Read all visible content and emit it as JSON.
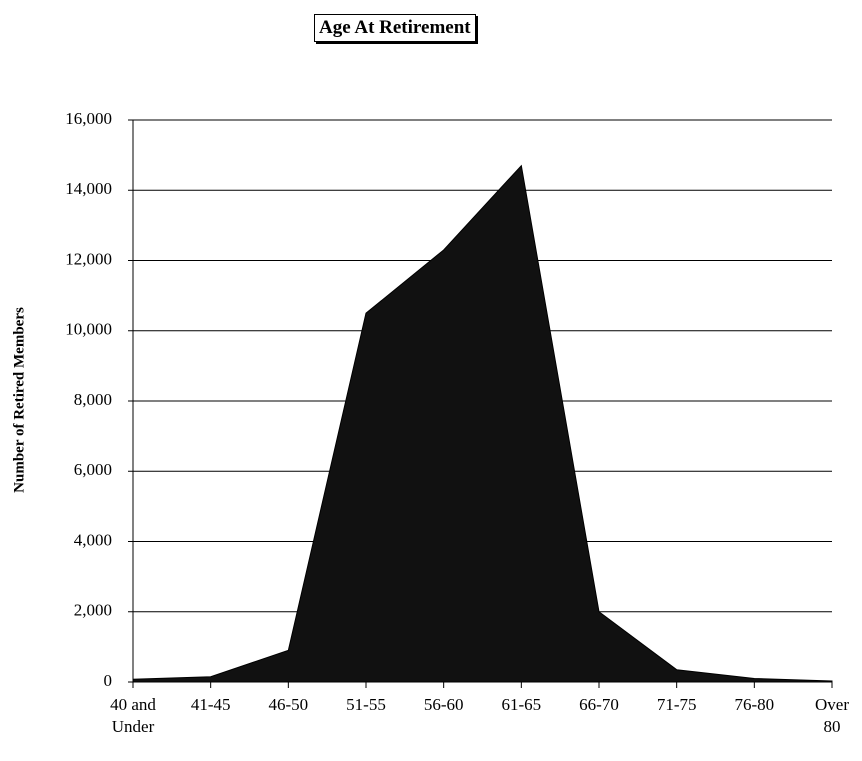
{
  "chart_data": {
    "type": "area",
    "title": "Age At Retirement",
    "y_label": "Number of Retired Members",
    "categories": [
      "40 and Under",
      "41-45",
      "46-50",
      "51-55",
      "56-60",
      "61-65",
      "66-70",
      "71-75",
      "76-80",
      "Over 80"
    ],
    "values": [
      80,
      150,
      900,
      10500,
      12300,
      14700,
      2000,
      350,
      100,
      30
    ],
    "color": "#111111",
    "ylim": [
      0,
      16000
    ],
    "yticks": [
      0,
      {
        "value": 2000,
        "label": "2,000"
      },
      {
        "value": 4000,
        "label": "4,000"
      },
      {
        "value": 6000,
        "label": "6,000"
      },
      {
        "value": 8000,
        "label": "8,000"
      },
      {
        "value": 10000,
        "label": "10,000"
      },
      {
        "value": 12000,
        "label": "12,000"
      },
      {
        "value": 14000,
        "label": "14,000"
      },
      {
        "value": 16000,
        "label": "16,000"
      }
    ],
    "grid": true
  }
}
